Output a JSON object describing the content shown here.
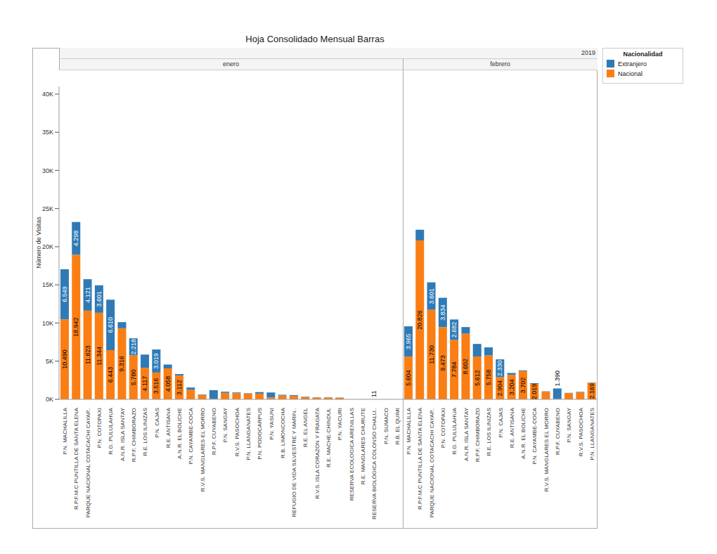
{
  "chart_data": {
    "type": "bar",
    "title": "Hoja Consolidado Mensual Barras",
    "subtitle": "2019",
    "y_label": "Número de Visitas",
    "legend_title": "Nacionalidad",
    "legend": "upper right",
    "stacked": true,
    "data_labels": true,
    "grid": false,
    "ylim": [
      0,
      41000
    ],
    "yticks": [
      {
        "value": 0,
        "label": "0K"
      },
      {
        "value": 5000,
        "label": "5K"
      },
      {
        "value": 10000,
        "label": "10K"
      },
      {
        "value": 15000,
        "label": "15K"
      },
      {
        "value": 20000,
        "label": "20K"
      },
      {
        "value": 25000,
        "label": "25K"
      },
      {
        "value": 30000,
        "label": "30K"
      },
      {
        "value": 35000,
        "label": "35K"
      },
      {
        "value": 40000,
        "label": "40K"
      }
    ],
    "panels": [
      {
        "title": "enero",
        "categories": [
          "P.N. MACHALILLA",
          "R.P.F.M.C PUNTILLA DE SANTA ELENA",
          "PARQUE NACIONAL COTACACHI CAYAP..",
          "P.N. COTOPAXI",
          "R.G. PULULAHUA",
          "A.N.R. ISLA SANTAY",
          "R.P.F. CHIMBORAZO",
          "R.E. LOS ILINIZAS",
          "P.N. CAJAS",
          "R.E. ANTISANA",
          "A.N.R. EL BOLICHE",
          "P.N. CAYAMBE-COCA",
          "R.V.S. MANGLARES EL MORRO",
          "R.P.F. CUYABENO",
          "P.N. SANGAY",
          "R.V.S. PASOCHOA",
          "P.N. LLANGANATES",
          "P.N. PODOCARPUS",
          "P.N. YASUNI",
          "R.B. LIMONCOCHA",
          "REFUGIO DE VIDA SILVESTRE Y MARIN..",
          "R.E. EL ANGEL",
          "R.V.S. ISLA CORAZON Y FRAGATA",
          "R.E. MACHE-CHINDUL",
          "P.N. YACURI",
          "RESERVA ECOLOGICA ARENILLAS",
          "R.E. MANGLARES CHURUTE",
          "RESERVA BIOLÓGICA COLONSO CHALU..",
          "P.N. SUMACO",
          "R.B. EL QUIMI"
        ],
        "series": [
          {
            "name": "Extranjero",
            "color": "#2f7ab5",
            "values": [
              6549,
              4298,
              4121,
              3601,
              6610,
              800,
              2218,
              1750,
              3019,
              500,
              200,
              300,
              50,
              1150,
              150,
              100,
              50,
              200,
              650,
              100,
              100,
              50,
              20,
              30,
              30,
              0,
              0,
              0,
              0,
              0
            ],
            "value_labels": [
              "6.549",
              "4.298",
              "4.121",
              "3.601",
              "6.610",
              null,
              "2.218",
              null,
              "3.019",
              null,
              null,
              null,
              null,
              null,
              null,
              null,
              null,
              null,
              null,
              null,
              null,
              null,
              null,
              null,
              null,
              null,
              null,
              null,
              null,
              null
            ]
          },
          {
            "name": "Nacional",
            "color": "#fb7e14",
            "values": [
              10490,
              18942,
              11623,
              11344,
              6443,
              9316,
              5780,
              4117,
              3516,
              4058,
              3112,
              1250,
              600,
              50,
              850,
              800,
              750,
              750,
              250,
              500,
              450,
              300,
              250,
              250,
              200,
              10,
              20,
              11,
              5,
              0
            ],
            "value_labels": [
              "10.490",
              "18.942",
              "11.623",
              "11.344",
              "6.443",
              "9.316",
              "5.780",
              "4.117",
              "3.516",
              "4.058",
              "3.112",
              null,
              null,
              null,
              null,
              null,
              null,
              null,
              null,
              null,
              null,
              null,
              null,
              null,
              null,
              null,
              null,
              "11",
              null,
              null
            ]
          }
        ]
      },
      {
        "title": "febrero",
        "categories": [
          "P.N. MACHALILLA",
          "R.P.F.M.C PUNTILLA DE SANTA ELENA",
          "PARQUE NACIONAL COTACACHI CAYAP..",
          "P.N. COTOPAXI",
          "R.G. PULULAHUA",
          "A.N.R. ISLA SANTAY",
          "R.P.F. CHIMBORAZO",
          "R.E. LOS ILINIZAS",
          "P.N. CAJAS",
          "R.E. ANTISANA",
          "A.N.R. EL BOLICHE",
          "P.N. CAYAMBE-COCA",
          "R.V.S. MANGLARES EL MORRO",
          "R.P.F. CUYABENO",
          "P.N. SANGAY",
          "R.V.S. PASOCHOA",
          "P.N. LLANGANATES"
        ],
        "series": [
          {
            "name": "Extranjero",
            "color": "#2f7ab5",
            "values": [
              3965,
              1400,
              3601,
              3834,
              2682,
              870,
              1650,
              1050,
              2330,
              250,
              100,
              100,
              50,
              1390,
              50,
              80,
              40
            ],
            "value_labels": [
              "3.965",
              null,
              "3.601",
              "3.834",
              "2.682",
              null,
              null,
              null,
              "2.330",
              null,
              null,
              null,
              null,
              "1.390",
              null,
              null,
              null
            ]
          },
          {
            "name": "Nacional",
            "color": "#fb7e14",
            "values": [
              5604,
              20826,
              11730,
              9473,
              7784,
              8602,
              5612,
              5758,
              2904,
              3204,
              3702,
              2019,
              1000,
              40,
              800,
              900,
              2169
            ],
            "value_labels": [
              "5.604",
              "20.826",
              "11.730",
              "9.473",
              "7.784",
              "8.602",
              "5.612",
              "5.758",
              "2.904",
              "3.204",
              "3.702",
              "2.019",
              null,
              null,
              null,
              null,
              "2.169"
            ]
          }
        ]
      }
    ]
  }
}
